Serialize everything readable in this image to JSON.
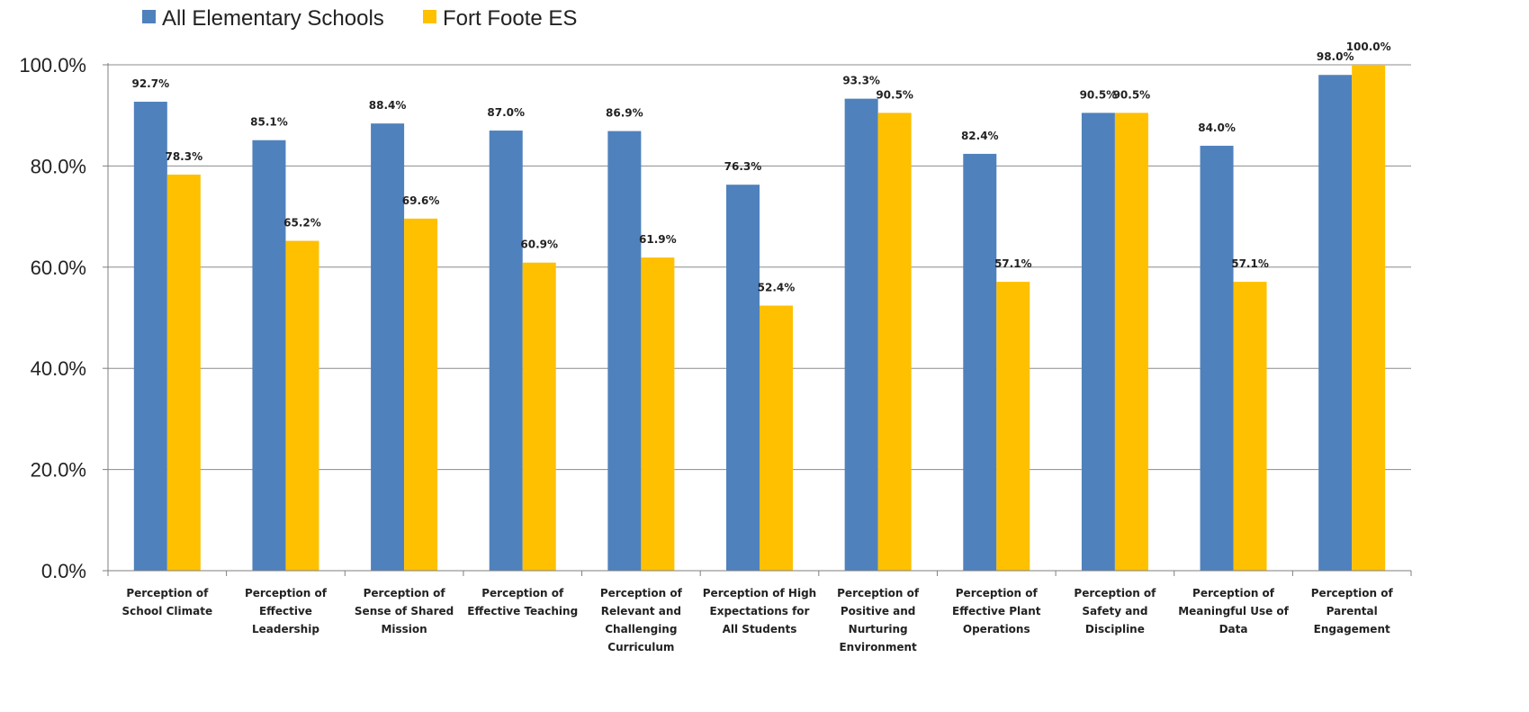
{
  "chart_data": {
    "type": "bar",
    "categories": [
      [
        "Perception of",
        "School Climate"
      ],
      [
        "Perception of",
        "Effective",
        "Leadership"
      ],
      [
        "Perception of",
        "Sense of Shared",
        "Mission"
      ],
      [
        "Perception of",
        "Effective Teaching"
      ],
      [
        "Perception of",
        "Relevant and",
        "Challenging",
        "Curriculum"
      ],
      [
        "Perception of High",
        "Expectations for",
        "All Students"
      ],
      [
        "Perception of",
        "Positive and",
        "Nurturing",
        "Environment"
      ],
      [
        "Perception of",
        "Effective Plant",
        "Operations"
      ],
      [
        "Perception of",
        "Safety and",
        "Discipline"
      ],
      [
        "Perception of",
        "Meaningful Use of",
        "Data"
      ],
      [
        "Perception of",
        "Parental",
        "Engagement"
      ]
    ],
    "series": [
      {
        "name": "All Elementary Schools",
        "color": "#4F81BD",
        "values": [
          92.7,
          85.1,
          88.4,
          87.0,
          86.9,
          76.3,
          93.3,
          82.4,
          90.5,
          84.0,
          98.0
        ],
        "labels": [
          "92.7%",
          "85.1%",
          "88.4%",
          "87.0%",
          "86.9%",
          "76.3%",
          "93.3%",
          "82.4%",
          "90.5%",
          "84.0%",
          "98.0%"
        ]
      },
      {
        "name": "Fort Foote ES",
        "color": "#FFC000",
        "values": [
          78.3,
          65.2,
          69.6,
          60.9,
          61.9,
          52.4,
          90.5,
          57.1,
          90.5,
          57.1,
          100.0
        ],
        "labels": [
          "78.3%",
          "65.2%",
          "69.6%",
          "60.9%",
          "61.9%",
          "52.4%",
          "90.5%",
          "57.1%",
          "90.5%",
          "57.1%",
          "100.0%"
        ]
      }
    ],
    "yticks": [
      "0.0%",
      "20.0%",
      "40.0%",
      "60.0%",
      "80.0%",
      "100.0%"
    ],
    "ylim": [
      0,
      100
    ],
    "grid": true,
    "legend_position": "top-left",
    "title": "",
    "xlabel": "",
    "ylabel": ""
  }
}
